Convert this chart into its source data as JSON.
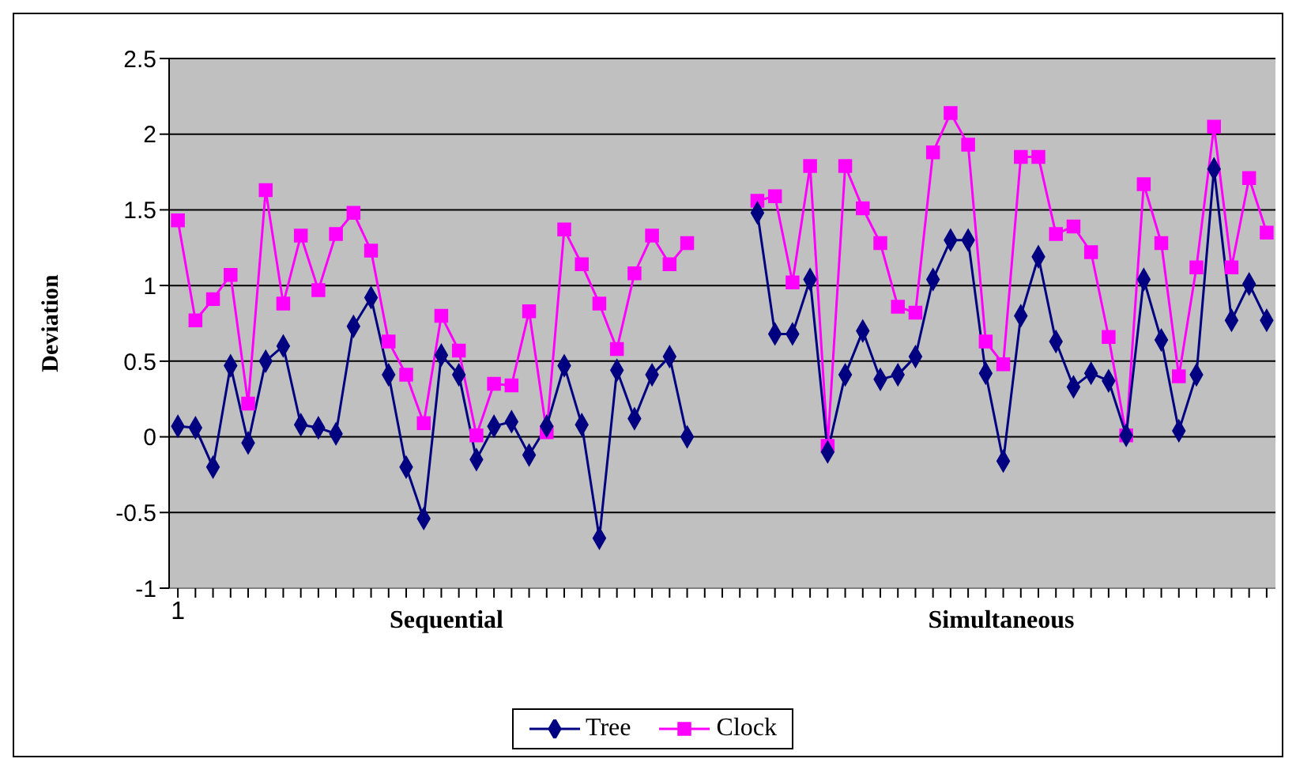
{
  "chart_data": {
    "type": "line",
    "ylabel": "Deviation",
    "categories": [
      "1",
      null,
      null,
      null,
      null,
      null,
      null,
      null,
      null,
      null,
      null,
      null,
      null,
      null,
      null,
      null,
      null,
      null,
      null,
      null,
      null,
      null,
      null,
      null,
      null,
      null,
      null,
      null,
      null,
      null,
      null,
      null,
      null,
      null,
      null,
      null,
      null,
      null,
      null,
      null,
      null,
      null,
      null,
      null,
      null,
      null,
      null,
      null,
      null,
      null,
      null,
      null,
      null,
      null,
      null,
      null,
      null,
      null,
      null,
      null,
      null,
      null,
      null
    ],
    "series": [
      {
        "name": "Tree",
        "color": "#000080",
        "marker": "diamond",
        "values": [
          0.07,
          0.06,
          -0.2,
          0.47,
          -0.04,
          0.5,
          0.6,
          0.08,
          0.06,
          0.02,
          0.73,
          0.92,
          0.41,
          -0.2,
          -0.54,
          0.54,
          0.41,
          -0.15,
          0.07,
          0.1,
          -0.12,
          0.07,
          0.47,
          0.08,
          -0.67,
          0.44,
          0.12,
          0.41,
          0.53,
          0,
          null,
          null,
          null,
          1.48,
          0.68,
          0.68,
          1.04,
          -0.1,
          0.41,
          0.7,
          0.38,
          0.41,
          0.53,
          1.04,
          1.3,
          1.3,
          0.42,
          -0.16,
          0.8,
          1.19,
          0.63,
          0.33,
          0.42,
          0.37,
          0.01,
          1.04,
          0.64,
          0.04,
          0.41,
          1.77,
          0.77,
          1.01,
          0.77
        ]
      },
      {
        "name": "Clock",
        "color": "#ff00ff",
        "marker": "square",
        "values": [
          1.43,
          0.77,
          0.91,
          1.07,
          0.22,
          1.63,
          0.88,
          1.33,
          0.97,
          1.34,
          1.48,
          1.23,
          0.63,
          0.41,
          0.09,
          0.8,
          0.57,
          0.01,
          0.35,
          0.34,
          0.83,
          0.03,
          1.37,
          1.14,
          0.88,
          0.58,
          1.08,
          1.33,
          1.14,
          1.28,
          null,
          null,
          null,
          1.56,
          1.59,
          1.02,
          1.79,
          -0.06,
          1.79,
          1.51,
          1.28,
          0.86,
          0.82,
          1.88,
          2.14,
          1.93,
          0.63,
          0.48,
          1.85,
          1.85,
          1.34,
          1.39,
          1.22,
          0.66,
          0.01,
          1.67,
          1.28,
          0.4,
          1.12,
          2.05,
          1.12,
          1.71,
          1.35
        ]
      }
    ],
    "annotations": [
      "Sequential",
      "Simultaneous"
    ],
    "ylim": [
      -1,
      2.5
    ],
    "yticks": [
      -1,
      -0.5,
      0,
      0.5,
      1,
      1.5,
      2,
      2.5
    ],
    "grid": "y",
    "legend": "bottom"
  }
}
